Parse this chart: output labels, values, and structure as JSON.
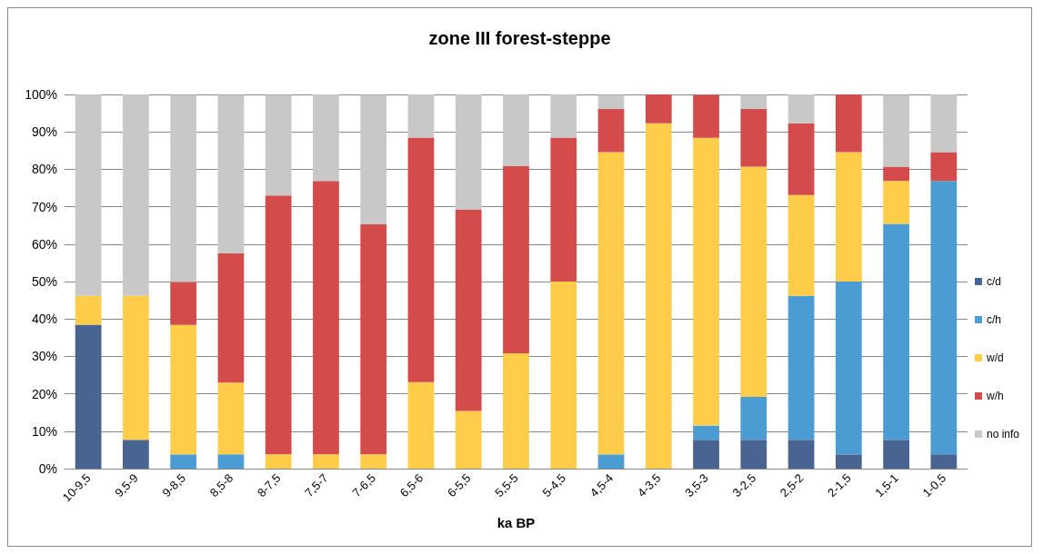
{
  "chart_data": {
    "type": "bar",
    "stacked": true,
    "title": "zone III forest-steppe",
    "xlabel": "ka BP",
    "categories": [
      "10-9,5",
      "9,5-9",
      "9-8,5",
      "8,5-8",
      "8-7,5",
      "7,5-7",
      "7-6,5",
      "6,5-6",
      "6-5,5",
      "5,5-5",
      "5-4,5",
      "4,5-4",
      "4-3,5",
      "3,5-3",
      "3-2,5",
      "2,5-2",
      "2-1,5",
      "1,5-1",
      "1-0,5"
    ],
    "series": [
      {
        "name": "c/d",
        "color": "#4a6491",
        "values": [
          38.5,
          7.7,
          0,
          0,
          0,
          0,
          0,
          0,
          0,
          0,
          0,
          0,
          0,
          7.7,
          7.7,
          7.7,
          3.8,
          7.7,
          3.8
        ]
      },
      {
        "name": "c/h",
        "color": "#4b9cd3",
        "values": [
          0,
          0,
          3.8,
          3.8,
          0,
          0,
          0,
          0,
          0,
          0,
          0,
          3.8,
          0,
          3.8,
          11.5,
          38.5,
          46.2,
          57.7,
          73.1
        ]
      },
      {
        "name": "w/d",
        "color": "#ffcd4a",
        "values": [
          7.7,
          38.5,
          34.6,
          19.2,
          3.8,
          3.8,
          3.8,
          23.1,
          15.4,
          30.8,
          50,
          80.8,
          92.3,
          76.9,
          61.5,
          26.9,
          34.6,
          11.5,
          0
        ]
      },
      {
        "name": "w/h",
        "color": "#d34b4b",
        "values": [
          0,
          0,
          11.5,
          34.6,
          69.2,
          73.1,
          61.5,
          65.4,
          53.8,
          50,
          38.5,
          11.5,
          7.7,
          11.5,
          15.4,
          19.2,
          15.4,
          3.8,
          7.7
        ]
      },
      {
        "name": "no info",
        "color": "#c8c8c8",
        "values": [
          53.8,
          53.8,
          50,
          42.3,
          26.9,
          23.1,
          34.6,
          11.5,
          30.8,
          19.2,
          11.5,
          3.8,
          0,
          0,
          3.8,
          7.7,
          0,
          19.2,
          15.4
        ]
      }
    ],
    "ylim": [
      0,
      100
    ],
    "yticks": [
      {
        "value": 0,
        "label": "0%"
      },
      {
        "value": 10,
        "label": "10%"
      },
      {
        "value": 20,
        "label": "20%"
      },
      {
        "value": 30,
        "label": "30%"
      },
      {
        "value": 40,
        "label": "40%"
      },
      {
        "value": 50,
        "label": "50%"
      },
      {
        "value": 60,
        "label": "60%"
      },
      {
        "value": 70,
        "label": "70%"
      },
      {
        "value": 80,
        "label": "80%"
      },
      {
        "value": 90,
        "label": "90%"
      },
      {
        "value": 100,
        "label": "100%"
      }
    ],
    "grid": "y",
    "legend": "right"
  }
}
